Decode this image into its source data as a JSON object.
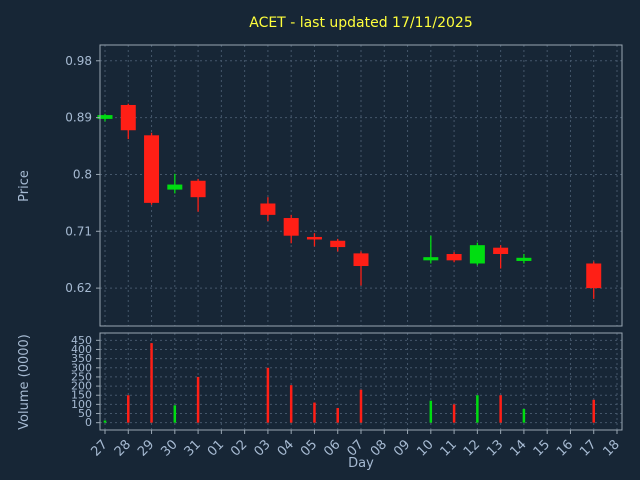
{
  "colors": {
    "background": "#172636",
    "grid": "#45576b",
    "frame": "#9aa7b3",
    "text": "#a6bad2",
    "title": "#ffff3c",
    "up": "#00dd11",
    "down": "#ff1f16"
  },
  "chart_data": {
    "type": "candlestick",
    "title": "ACET - last updated 17/11/2025",
    "xlabel": "Day",
    "grid": "dashed",
    "x_categories": [
      "27",
      "28",
      "29",
      "30",
      "31",
      "01",
      "02",
      "03",
      "04",
      "05",
      "06",
      "07",
      "08",
      "09",
      "10",
      "11",
      "12",
      "13",
      "14",
      "15",
      "16",
      "17",
      "18"
    ],
    "price_axis": {
      "label": "Price",
      "range": [
        0.56,
        1.005
      ],
      "ticks": [
        {
          "value": 0.98,
          "label": "0.98"
        },
        {
          "value": 0.89,
          "label": "0.89"
        },
        {
          "value": 0.8,
          "label": "0.8"
        },
        {
          "value": 0.71,
          "label": "0.71"
        },
        {
          "value": 0.62,
          "label": "0.62"
        }
      ]
    },
    "volume_axis": {
      "label": "Volume (0000)",
      "range": [
        -40,
        490
      ],
      "ticks": [
        {
          "value": 450,
          "label": "450"
        },
        {
          "value": 400,
          "label": "400"
        },
        {
          "value": 350,
          "label": "350"
        },
        {
          "value": 300,
          "label": "300"
        },
        {
          "value": 250,
          "label": "250"
        },
        {
          "value": 200,
          "label": "200"
        },
        {
          "value": 150,
          "label": "150"
        },
        {
          "value": 100,
          "label": "100"
        },
        {
          "value": 50,
          "label": "50"
        },
        {
          "value": 0,
          "label": "0"
        }
      ]
    },
    "candles": [
      {
        "day": "27",
        "open": 0.888,
        "high": 0.896,
        "low": 0.884,
        "close": 0.894,
        "direction": "up",
        "volume": 12
      },
      {
        "day": "28",
        "open": 0.91,
        "high": 0.912,
        "low": 0.856,
        "close": 0.87,
        "direction": "down",
        "volume": 150
      },
      {
        "day": "29",
        "open": 0.862,
        "high": 0.866,
        "low": 0.752,
        "close": 0.755,
        "direction": "down",
        "volume": 435
      },
      {
        "day": "30",
        "open": 0.776,
        "high": 0.801,
        "low": 0.77,
        "close": 0.784,
        "direction": "up",
        "volume": 95
      },
      {
        "day": "31",
        "open": 0.79,
        "high": 0.793,
        "low": 0.741,
        "close": 0.764,
        "direction": "down",
        "volume": 250
      },
      {
        "day": "03",
        "open": 0.754,
        "high": 0.764,
        "low": 0.726,
        "close": 0.736,
        "direction": "down",
        "volume": 300
      },
      {
        "day": "04",
        "open": 0.731,
        "high": 0.736,
        "low": 0.691,
        "close": 0.703,
        "direction": "down",
        "volume": 205
      },
      {
        "day": "05",
        "open": 0.701,
        "high": 0.707,
        "low": 0.686,
        "close": 0.697,
        "direction": "down",
        "volume": 110
      },
      {
        "day": "06",
        "open": 0.695,
        "high": 0.698,
        "low": 0.678,
        "close": 0.685,
        "direction": "down",
        "volume": 80
      },
      {
        "day": "07",
        "open": 0.675,
        "high": 0.678,
        "low": 0.624,
        "close": 0.655,
        "direction": "down",
        "volume": 180
      },
      {
        "day": "10",
        "open": 0.664,
        "high": 0.703,
        "low": 0.659,
        "close": 0.669,
        "direction": "up",
        "volume": 120
      },
      {
        "day": "11",
        "open": 0.674,
        "high": 0.677,
        "low": 0.661,
        "close": 0.664,
        "direction": "down",
        "volume": 100
      },
      {
        "day": "12",
        "open": 0.659,
        "high": 0.692,
        "low": 0.656,
        "close": 0.688,
        "direction": "up",
        "volume": 150
      },
      {
        "day": "13",
        "open": 0.684,
        "high": 0.688,
        "low": 0.651,
        "close": 0.674,
        "direction": "down",
        "volume": 150
      },
      {
        "day": "14",
        "open": 0.663,
        "high": 0.674,
        "low": 0.659,
        "close": 0.668,
        "direction": "up",
        "volume": 75
      },
      {
        "day": "17",
        "open": 0.659,
        "high": 0.662,
        "low": 0.603,
        "close": 0.62,
        "direction": "down",
        "volume": 125
      }
    ]
  }
}
